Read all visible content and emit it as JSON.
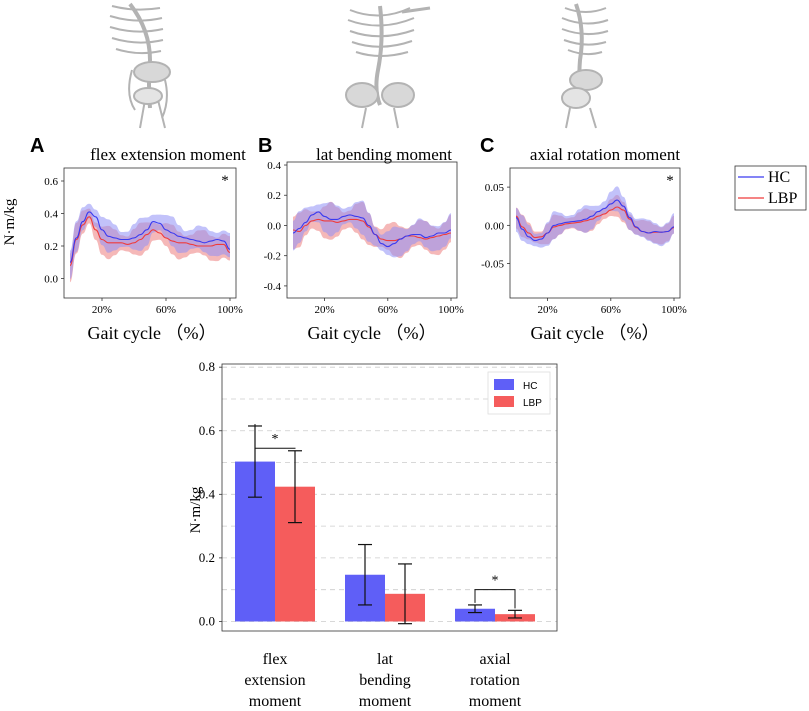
{
  "colors": {
    "hc": "#3a3af0",
    "lbp": "#ef3b3b",
    "hc_band": "#8f8ff5",
    "lbp_band": "#f2a0a0",
    "overlap_band": "#a8669a",
    "bar_hc": "#5f5ff7",
    "bar_lbp": "#f55c5c",
    "grid": "#cccccc",
    "bone": "#bdbdbd"
  },
  "illustrations": [
    {
      "name": "skeleton-flexion-view",
      "icon": "skeleton-icon"
    },
    {
      "name": "skeleton-bending-view",
      "icon": "skeleton-icon"
    },
    {
      "name": "skeleton-rotation-view",
      "icon": "skeleton-icon"
    }
  ],
  "legend_top": {
    "hc": "HC",
    "lbp": "LBP"
  },
  "chart_data": [
    {
      "type": "line",
      "panel_letter": "A",
      "title": "flex extension moment",
      "ylabel": "N·m/kg",
      "xlabel": "Gait cycle  （%）",
      "xlim": [
        0,
        100
      ],
      "ylim": [
        -0.12,
        0.68
      ],
      "x_ticks": [
        "20%",
        "60%",
        "100%"
      ],
      "x_tick_values": [
        20,
        60,
        100
      ],
      "y_ticks": [
        "0.0",
        "0.2",
        "0.4",
        "0.6"
      ],
      "y_tick_values": [
        0,
        0.2,
        0.4,
        0.6
      ],
      "annotation": "*",
      "x": [
        0,
        4,
        8,
        12,
        16,
        20,
        24,
        28,
        32,
        36,
        40,
        44,
        48,
        52,
        56,
        60,
        64,
        68,
        72,
        76,
        80,
        84,
        88,
        92,
        96,
        100
      ],
      "series": [
        {
          "name": "HC",
          "values": [
            0.1,
            0.25,
            0.35,
            0.41,
            0.38,
            0.3,
            0.26,
            0.25,
            0.24,
            0.24,
            0.25,
            0.27,
            0.3,
            0.35,
            0.34,
            0.3,
            0.28,
            0.26,
            0.25,
            0.24,
            0.23,
            0.22,
            0.23,
            0.24,
            0.23,
            0.18
          ],
          "band": 0.09
        },
        {
          "name": "LBP",
          "values": [
            0.08,
            0.24,
            0.33,
            0.38,
            0.3,
            0.24,
            0.22,
            0.22,
            0.22,
            0.21,
            0.22,
            0.24,
            0.27,
            0.3,
            0.28,
            0.25,
            0.23,
            0.22,
            0.22,
            0.21,
            0.2,
            0.2,
            0.2,
            0.21,
            0.21,
            0.16
          ],
          "band": 0.09
        }
      ]
    },
    {
      "type": "line",
      "panel_letter": "B",
      "title": "lat bending moment",
      "ylabel": "",
      "xlabel": "Gait cycle  （%）",
      "xlim": [
        0,
        100
      ],
      "ylim": [
        -0.48,
        0.42
      ],
      "x_ticks": [
        "20%",
        "60%",
        "100%"
      ],
      "x_tick_values": [
        20,
        60,
        100
      ],
      "y_ticks": [
        "-0.4",
        "-0.2",
        "0.0",
        "0.2",
        "0.4"
      ],
      "y_tick_values": [
        -0.4,
        -0.2,
        0,
        0.2,
        0.4
      ],
      "annotation": "",
      "x": [
        0,
        4,
        8,
        12,
        16,
        20,
        24,
        28,
        32,
        36,
        40,
        44,
        48,
        52,
        56,
        60,
        64,
        68,
        72,
        76,
        80,
        84,
        88,
        92,
        96,
        100
      ],
      "series": [
        {
          "name": "HC",
          "values": [
            -0.05,
            -0.02,
            0.02,
            0.07,
            0.09,
            0.06,
            0.04,
            0.04,
            0.06,
            0.07,
            0.06,
            0.05,
            0.0,
            -0.06,
            -0.12,
            -0.14,
            -0.12,
            -0.09,
            -0.07,
            -0.06,
            -0.06,
            -0.08,
            -0.07,
            -0.05,
            -0.05,
            -0.03
          ],
          "band": 0.1
        },
        {
          "name": "LBP",
          "values": [
            -0.03,
            -0.04,
            0.0,
            0.03,
            0.04,
            0.03,
            0.03,
            0.02,
            0.03,
            0.04,
            0.04,
            0.03,
            -0.01,
            -0.06,
            -0.09,
            -0.1,
            -0.1,
            -0.09,
            -0.07,
            -0.07,
            -0.08,
            -0.09,
            -0.08,
            -0.07,
            -0.06,
            -0.05
          ],
          "band": 0.11
        }
      ]
    },
    {
      "type": "line",
      "panel_letter": "C",
      "title": "axial rotation moment",
      "ylabel": "",
      "xlabel": "Gait cycle  （%）",
      "xlim": [
        0,
        100
      ],
      "ylim": [
        -0.095,
        0.075
      ],
      "x_ticks": [
        "20%",
        "60%",
        "100%"
      ],
      "x_tick_values": [
        20,
        60,
        100
      ],
      "y_ticks": [
        "-0.05",
        "0.00",
        "0.05"
      ],
      "y_tick_values": [
        -0.05,
        0,
        0.05
      ],
      "annotation": "*",
      "x": [
        0,
        4,
        8,
        12,
        16,
        20,
        24,
        28,
        32,
        36,
        40,
        44,
        48,
        52,
        56,
        60,
        64,
        68,
        72,
        76,
        80,
        84,
        88,
        92,
        96,
        100
      ],
      "series": [
        {
          "name": "HC",
          "values": [
            0.01,
            -0.005,
            -0.015,
            -0.02,
            -0.018,
            -0.01,
            0.0,
            0.002,
            0.004,
            0.005,
            0.006,
            0.008,
            0.012,
            0.018,
            0.022,
            0.028,
            0.033,
            0.025,
            0.01,
            -0.002,
            -0.008,
            -0.01,
            -0.008,
            -0.009,
            -0.008,
            -0.002
          ],
          "band": 0.016
        },
        {
          "name": "LBP",
          "values": [
            0.012,
            -0.002,
            -0.01,
            -0.016,
            -0.015,
            -0.01,
            -0.002,
            0.0,
            0.002,
            0.003,
            0.004,
            0.006,
            0.008,
            0.012,
            0.015,
            0.02,
            0.024,
            0.02,
            0.008,
            -0.003,
            -0.008,
            -0.01,
            -0.009,
            -0.009,
            -0.008,
            -0.003
          ],
          "band": 0.014
        }
      ]
    },
    {
      "type": "bar",
      "title": "",
      "ylabel": "N·m/kg",
      "xlabel": "",
      "ylim": [
        -0.03,
        0.81
      ],
      "y_ticks": [
        "0.0",
        "0.2",
        "0.4",
        "0.6",
        "0.8"
      ],
      "y_tick_values": [
        0,
        0.2,
        0.4,
        0.6,
        0.8
      ],
      "categories": [
        [
          "flex",
          "extension",
          "moment"
        ],
        [
          "lat",
          "bending",
          "moment"
        ],
        [
          "axial",
          "rotation",
          "moment"
        ]
      ],
      "series": [
        {
          "name": "HC",
          "values": [
            0.503,
            0.147,
            0.04
          ],
          "errors": [
            0.112,
            0.095,
            0.012
          ]
        },
        {
          "name": "LBP",
          "values": [
            0.424,
            0.087,
            0.023
          ],
          "errors": [
            0.113,
            0.094,
            0.012
          ]
        }
      ],
      "significance": [
        {
          "category": 0,
          "label": "*",
          "level": 0.545
        },
        {
          "category": 2,
          "label": "*",
          "level": 0.1
        }
      ],
      "legend": [
        "HC",
        "LBP"
      ],
      "legend_position": "top-right",
      "grid": true
    }
  ]
}
